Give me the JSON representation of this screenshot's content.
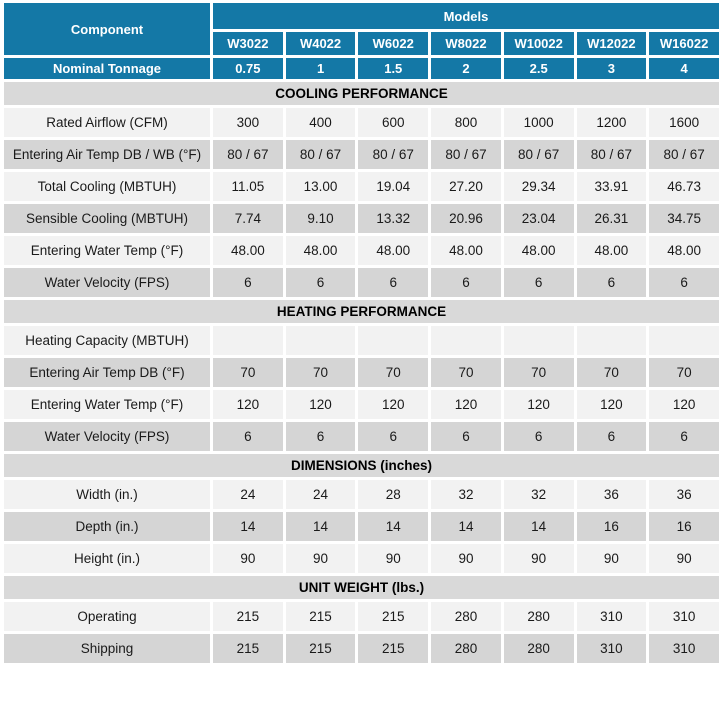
{
  "header": {
    "component_label": "Component",
    "models_label": "Models",
    "models": [
      "W3022",
      "W4022",
      "W6022",
      "W8022",
      "W10022",
      "W12022",
      "W16022"
    ],
    "nominal_tonnage_label": "Nominal Tonnage",
    "nominal_tonnage": [
      "0.75",
      "1",
      "1.5",
      "2",
      "2.5",
      "3",
      "4"
    ]
  },
  "sections": [
    {
      "title": "COOLING PERFORMANCE",
      "rows": [
        {
          "label": "Rated Airflow (CFM)",
          "values": [
            "300",
            "400",
            "600",
            "800",
            "1000",
            "1200",
            "1600"
          ]
        },
        {
          "label": "Entering Air Temp DB / WB (°F)",
          "values": [
            "80 / 67",
            "80 / 67",
            "80 / 67",
            "80 / 67",
            "80 / 67",
            "80 / 67",
            "80 / 67"
          ]
        },
        {
          "label": "Total Cooling (MBTUH)",
          "values": [
            "11.05",
            "13.00",
            "19.04",
            "27.20",
            "29.34",
            "33.91",
            "46.73"
          ]
        },
        {
          "label": "Sensible Cooling (MBTUH)",
          "values": [
            "7.74",
            "9.10",
            "13.32",
            "20.96",
            "23.04",
            "26.31",
            "34.75"
          ]
        },
        {
          "label": "Entering Water Temp (°F)",
          "values": [
            "48.00",
            "48.00",
            "48.00",
            "48.00",
            "48.00",
            "48.00",
            "48.00"
          ]
        },
        {
          "label": "Water Velocity (FPS)",
          "values": [
            "6",
            "6",
            "6",
            "6",
            "6",
            "6",
            "6"
          ]
        }
      ]
    },
    {
      "title": "HEATING PERFORMANCE",
      "rows": [
        {
          "label": "Heating Capacity (MBTUH)",
          "values": [
            "",
            "",
            "",
            "",
            "",
            "",
            ""
          ]
        },
        {
          "label": "Entering Air Temp DB (°F)",
          "values": [
            "70",
            "70",
            "70",
            "70",
            "70",
            "70",
            "70"
          ]
        },
        {
          "label": "Entering Water Temp (°F)",
          "values": [
            "120",
            "120",
            "120",
            "120",
            "120",
            "120",
            "120"
          ]
        },
        {
          "label": "Water Velocity (FPS)",
          "values": [
            "6",
            "6",
            "6",
            "6",
            "6",
            "6",
            "6"
          ]
        }
      ]
    },
    {
      "title": "DIMENSIONS (inches)",
      "rows": [
        {
          "label": "Width (in.)",
          "values": [
            "24",
            "24",
            "28",
            "32",
            "32",
            "36",
            "36"
          ]
        },
        {
          "label": "Depth (in.)",
          "values": [
            "14",
            "14",
            "14",
            "14",
            "14",
            "16",
            "16"
          ]
        },
        {
          "label": "Height (in.)",
          "values": [
            "90",
            "90",
            "90",
            "90",
            "90",
            "90",
            "90"
          ]
        }
      ]
    },
    {
      "title": "UNIT WEIGHT (lbs.)",
      "rows": [
        {
          "label": "Operating",
          "values": [
            "215",
            "215",
            "215",
            "280",
            "280",
            "310",
            "310"
          ]
        },
        {
          "label": "Shipping",
          "values": [
            "215",
            "215",
            "215",
            "280",
            "280",
            "310",
            "310"
          ]
        }
      ]
    }
  ],
  "colors": {
    "header_teal": "#1478A6",
    "section_band_gray": "#D9D9D9",
    "row_light": "#F2F2F2",
    "row_gray": "#D5D5D5"
  }
}
